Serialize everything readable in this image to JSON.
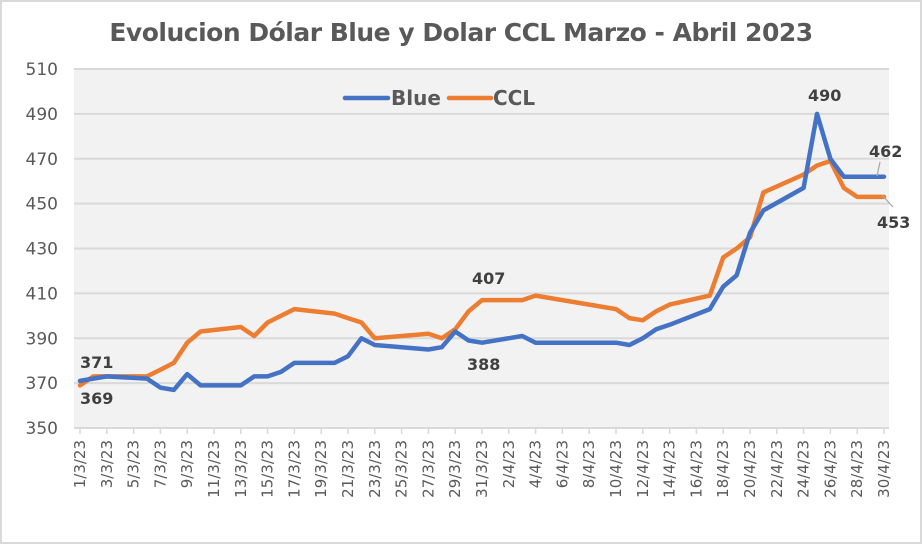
{
  "chart_data": {
    "type": "line",
    "title": "Evolucion Dólar Blue y Dolar CCL Marzo - Abril 2023",
    "xlabel": "",
    "ylabel": "",
    "ylim": [
      350,
      510
    ],
    "yticks": [
      350,
      370,
      390,
      410,
      430,
      450,
      470,
      490,
      510
    ],
    "grid": true,
    "legend_position": "top-inside",
    "x_tick_labels": [
      "1/3/23",
      "3/3/23",
      "5/3/23",
      "7/3/23",
      "9/3/23",
      "11/3/23",
      "13/3/23",
      "15/3/23",
      "17/3/23",
      "19/3/23",
      "21/3/23",
      "23/3/23",
      "25/3/23",
      "27/3/23",
      "29/3/23",
      "31/3/23",
      "2/4/23",
      "4/4/23",
      "6/4/23",
      "8/4/23",
      "10/4/23",
      "12/4/23",
      "14/4/23",
      "16/4/23",
      "18/4/23",
      "20/4/23",
      "22/4/23",
      "24/4/23",
      "26/4/23",
      "28/4/23",
      "30/4/23"
    ],
    "x": [
      "1/3/23",
      "2/3/23",
      "3/3/23",
      "6/3/23",
      "7/3/23",
      "8/3/23",
      "9/3/23",
      "10/3/23",
      "13/3/23",
      "14/3/23",
      "15/3/23",
      "16/3/23",
      "17/3/23",
      "20/3/23",
      "21/3/23",
      "22/3/23",
      "23/3/23",
      "27/3/23",
      "28/3/23",
      "29/3/23",
      "30/3/23",
      "31/3/23",
      "3/4/23",
      "4/4/23",
      "5/4/23",
      "10/4/23",
      "11/4/23",
      "12/4/23",
      "13/4/23",
      "14/4/23",
      "17/4/23",
      "18/4/23",
      "19/4/23",
      "20/4/23",
      "21/4/23",
      "24/4/23",
      "25/4/23",
      "26/4/23",
      "27/4/23",
      "28/4/23",
      "30/4/23"
    ],
    "series": [
      {
        "name": "Blue",
        "color": "#4472c4",
        "values": [
          371,
          372,
          373,
          372,
          368,
          367,
          374,
          369,
          369,
          373,
          373,
          375,
          379,
          379,
          382,
          390,
          387,
          385,
          386,
          393,
          389,
          388,
          391,
          388,
          388,
          388,
          387,
          390,
          394,
          396,
          403,
          413,
          418,
          437,
          447,
          457,
          490,
          470,
          462,
          462,
          462
        ]
      },
      {
        "name": "CCL",
        "color": "#ed7d31",
        "values": [
          369,
          373,
          373,
          373,
          376,
          379,
          388,
          393,
          395,
          391,
          397,
          400,
          403,
          401,
          399,
          397,
          390,
          392,
          390,
          394,
          402,
          407,
          407,
          409,
          408,
          403,
          399,
          398,
          402,
          405,
          409,
          426,
          430,
          435,
          455,
          463,
          467,
          469,
          457,
          453,
          453
        ]
      }
    ],
    "annotations": [
      {
        "text": "371",
        "series": "Blue",
        "x": "1/3/23"
      },
      {
        "text": "369",
        "series": "CCL",
        "x": "1/3/23"
      },
      {
        "text": "407",
        "series": "CCL",
        "x": "31/3/23"
      },
      {
        "text": "388",
        "series": "Blue",
        "x": "31/3/23"
      },
      {
        "text": "490",
        "series": "Blue",
        "x": "25/4/23"
      },
      {
        "text": "462",
        "series": "Blue",
        "x": "30/4/23"
      },
      {
        "text": "453",
        "series": "CCL",
        "x": "30/4/23"
      }
    ]
  },
  "legend": {
    "blue_label": "Blue",
    "ccl_label": "CCL"
  }
}
